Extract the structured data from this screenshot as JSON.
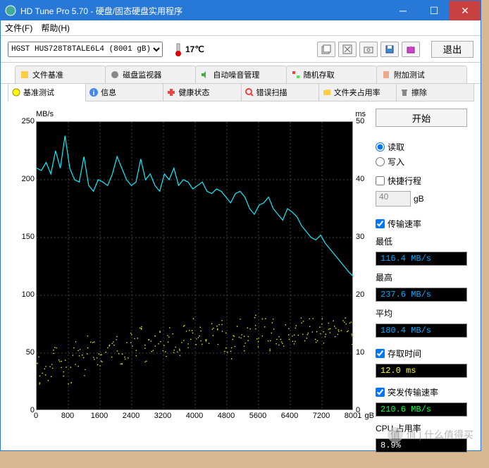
{
  "window": {
    "title": "HD Tune Pro 5.70 - 硬盘/固态硬盘实用程序"
  },
  "menu": {
    "file": "文件(F)",
    "help": "帮助(H)"
  },
  "toolbar": {
    "drive": "HGST HUS728T8TALE6L4 (8001 gB)",
    "temp": "17℃",
    "exit": "退出"
  },
  "tabs1": {
    "file_benchmark": "文件基准",
    "disk_monitor": "磁盘监视器",
    "aam": "自动噪音管理",
    "random_access": "随机存取",
    "extra_tests": "附加测试"
  },
  "tabs2": {
    "benchmark": "基准测试",
    "info": "信息",
    "health": "健康状态",
    "error_scan": "错误扫描",
    "folder_usage": "文件夹占用率",
    "erase": "擦除"
  },
  "chart": {
    "y_left_label": "MB/s",
    "y_right_label": "ms",
    "y_left": [
      250,
      200,
      150,
      100,
      50,
      0
    ],
    "y_right": [
      50,
      40,
      30,
      20,
      10,
      0
    ],
    "x": [
      0,
      800,
      1600,
      2400,
      3200,
      4000,
      4800,
      5600,
      6400,
      7200,
      "8001"
    ],
    "x_unit": "gB",
    "transfer_color": "#0af0ff",
    "access_color": "#f0f000",
    "transfer": [
      210,
      208,
      215,
      205,
      225,
      210,
      238,
      210,
      200,
      198,
      220,
      195,
      190,
      200,
      198,
      195,
      205,
      220,
      210,
      200,
      195,
      198,
      218,
      200,
      205,
      195,
      190,
      205,
      200,
      210,
      195,
      200,
      198,
      192,
      195,
      198,
      190,
      188,
      192,
      190,
      185,
      180,
      188,
      190,
      185,
      175,
      170,
      178,
      180,
      185,
      175,
      170,
      165,
      175,
      172,
      168,
      160,
      155,
      150,
      148,
      152,
      145,
      140,
      135,
      130,
      125,
      120,
      116
    ],
    "access": [
      8,
      5,
      6,
      7,
      9,
      8,
      7,
      6,
      10,
      9,
      8,
      11,
      10,
      9,
      8,
      12,
      10,
      11,
      9,
      10,
      12,
      11,
      13,
      10,
      12,
      11,
      12,
      10,
      13,
      12,
      11,
      13,
      12,
      14,
      11,
      13,
      12,
      14,
      13,
      14,
      12,
      11,
      13,
      14,
      12,
      13,
      15,
      13,
      14,
      12,
      14,
      13,
      12,
      14,
      13,
      14,
      15,
      13,
      14,
      12,
      14,
      13,
      15,
      14,
      13,
      15,
      14,
      13
    ]
  },
  "side": {
    "start": "开始",
    "read": "读取",
    "write": "写入",
    "short_stroke": "快捷行程",
    "stroke_val": "40",
    "stroke_unit": "gB",
    "transfer_rate": "传输速率",
    "min_label": "最低",
    "min_val": "116.4 MB/s",
    "max_label": "最高",
    "max_val": "237.6 MB/s",
    "avg_label": "平均",
    "avg_val": "180.4 MB/s",
    "access_label": "存取时间",
    "access_val": "12.0 ms",
    "burst_label": "突发传输速率",
    "burst_val": "210.6 MB/s",
    "cpu_label": "CPU 占用率",
    "cpu_val": "8.9%"
  },
  "watermark": "值 | 什么值得买"
}
